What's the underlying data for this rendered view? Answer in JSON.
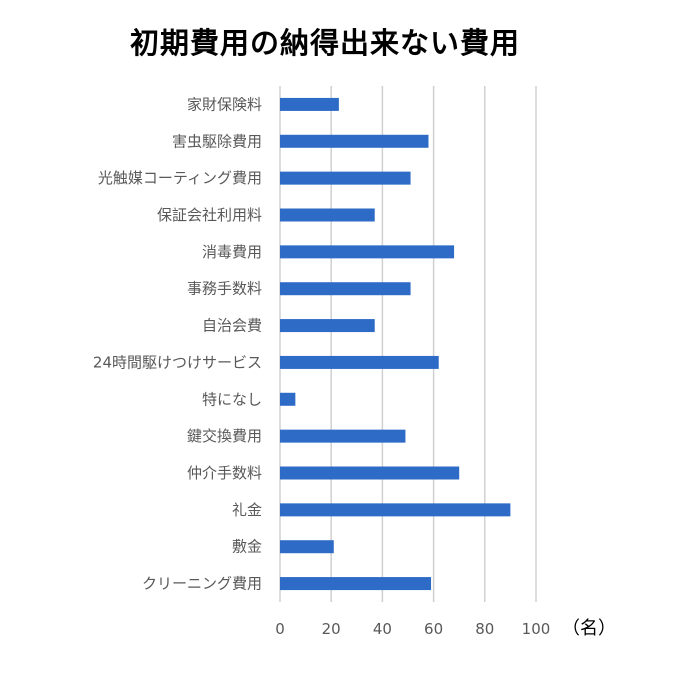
{
  "chart_data": {
    "type": "bar",
    "orientation": "horizontal",
    "title": "初期費用の納得出来ない費用",
    "xlabel": "（名）",
    "ylabel": "",
    "categories": [
      "家財保険料",
      "害虫駆除費用",
      "光触媒コーティング費用",
      "保証会社利用料",
      "消毒費用",
      "事務手数料",
      "自治会費",
      "24時間駆けつけサービス",
      "特になし",
      "鍵交換費用",
      "仲介手数料",
      "礼金",
      "敷金",
      "クリーニング費用"
    ],
    "values": [
      23,
      58,
      51,
      37,
      68,
      51,
      37,
      62,
      6,
      49,
      70,
      90,
      21,
      59
    ],
    "xlim": [
      0,
      100
    ],
    "xticks": [
      "0",
      "20",
      "40",
      "60",
      "80",
      "100"
    ],
    "grid": true,
    "legend": "none",
    "bar_color": "#2E6BC6"
  }
}
